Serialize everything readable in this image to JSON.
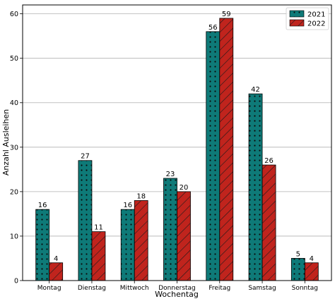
{
  "chart_data": {
    "type": "bar",
    "title": "",
    "xlabel": "Wochentag",
    "ylabel": "Anzahl Ausleihen",
    "categories": [
      "Montag",
      "Dienstag",
      "Mittwoch",
      "Donnerstag",
      "Freitag",
      "Samstag",
      "Sonntag"
    ],
    "series": [
      {
        "name": "2021",
        "values": [
          16,
          27,
          16,
          23,
          56,
          42,
          5
        ],
        "color": "#0e7a78",
        "pattern": "dots"
      },
      {
        "name": "2022",
        "values": [
          4,
          11,
          18,
          20,
          59,
          26,
          4
        ],
        "color": "#c0241d",
        "pattern": "diagonal-hatch"
      }
    ],
    "ylim": [
      0,
      62
    ],
    "yticks": [
      0,
      10,
      20,
      30,
      40,
      50,
      60
    ],
    "grid": "horizontal",
    "legend_position": "top-right",
    "data_labels": true
  }
}
